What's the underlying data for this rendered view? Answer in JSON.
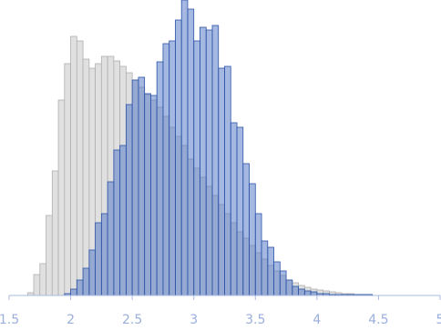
{
  "chart_data": {
    "type": "histogram",
    "xlim": [
      1.5,
      5
    ],
    "xticks": [
      1.5,
      2,
      2.5,
      3,
      3.5,
      4,
      4.5,
      5
    ],
    "ylim": [
      0,
      325
    ],
    "series": [
      {
        "color": "#e0e0e0",
        "bins": [
          1.65,
          1.7,
          1.75,
          1.8,
          1.85,
          1.9,
          1.95,
          2.0,
          2.05,
          2.1,
          2.15,
          2.2,
          2.25,
          2.3,
          2.35,
          2.4,
          2.45,
          2.5,
          2.55,
          2.6,
          2.65,
          2.7,
          2.75,
          2.8,
          2.85,
          2.9,
          2.95,
          3.0,
          3.05,
          3.1,
          3.15,
          3.2,
          3.25,
          3.3,
          3.35,
          3.4,
          3.45,
          3.5,
          3.55,
          3.6,
          3.65,
          3.7,
          3.75,
          3.8,
          3.85,
          3.9,
          3.95,
          4.0,
          4.05,
          4.1,
          4.15,
          4.2,
          4.25,
          4.3,
          4.35,
          4.4,
          4.45
        ],
        "values": [
          3,
          23,
          35,
          88,
          137,
          215,
          255,
          285,
          280,
          260,
          250,
          255,
          263,
          263,
          258,
          252,
          245,
          237,
          229,
          221,
          215,
          207,
          197,
          185,
          175,
          165,
          150,
          140,
          130,
          120,
          110,
          100,
          90,
          80,
          70,
          63,
          55,
          47,
          40,
          33,
          27,
          22,
          17,
          14,
          11,
          9,
          7,
          6,
          5,
          4,
          3,
          2,
          2,
          1,
          1,
          1
        ]
      },
      {
        "color": "#4a72c4",
        "bins": [
          1.95,
          2.0,
          2.05,
          2.1,
          2.15,
          2.2,
          2.25,
          2.3,
          2.35,
          2.4,
          2.45,
          2.5,
          2.55,
          2.6,
          2.65,
          2.7,
          2.75,
          2.8,
          2.85,
          2.9,
          2.95,
          3.0,
          3.05,
          3.1,
          3.15,
          3.2,
          3.25,
          3.3,
          3.35,
          3.4,
          3.45,
          3.5,
          3.55,
          3.6,
          3.65,
          3.7,
          3.75,
          3.8,
          3.85,
          3.9,
          3.95,
          4.0,
          4.05,
          4.1,
          4.15,
          4.2,
          4.25,
          4.3,
          4.35,
          4.4,
          4.45
        ],
        "values": [
          2,
          7,
          17,
          30,
          50,
          80,
          90,
          125,
          160,
          165,
          210,
          237,
          240,
          222,
          220,
          257,
          277,
          280,
          303,
          325,
          315,
          280,
          295,
          292,
          297,
          250,
          252,
          190,
          185,
          145,
          123,
          90,
          60,
          53,
          37,
          27,
          17,
          10,
          7,
          5,
          4,
          2,
          2,
          1,
          1,
          1,
          1,
          1,
          1,
          1
        ]
      }
    ]
  }
}
